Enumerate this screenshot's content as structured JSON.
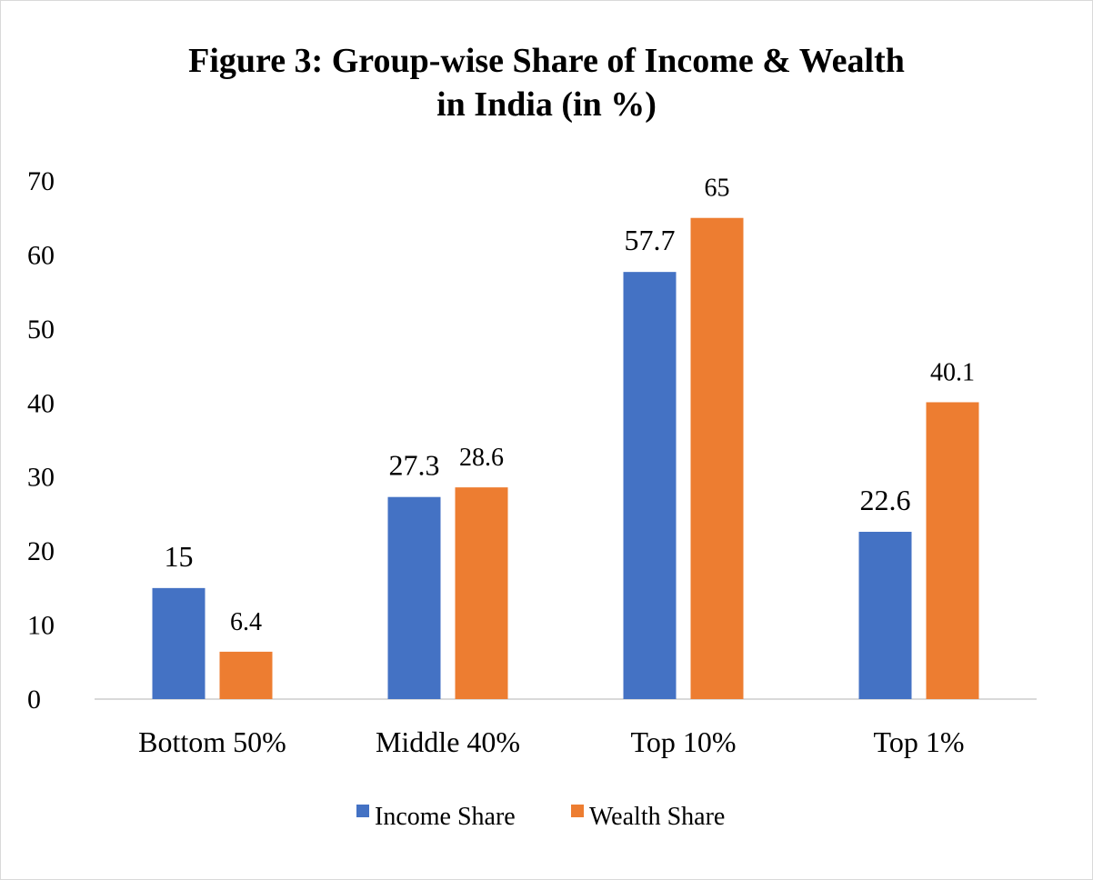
{
  "chart_data": {
    "type": "bar",
    "title": [
      "Figure 3: Group-wise Share of Income & Wealth",
      "in India (in %)"
    ],
    "categories": [
      "Bottom 50%",
      "Middle 40%",
      "Top 10%",
      "Top 1%"
    ],
    "series": [
      {
        "name": "Income Share",
        "values": [
          15,
          27.3,
          57.7,
          22.6
        ],
        "color": "#4472C4"
      },
      {
        "name": "Wealth Share",
        "values": [
          6.4,
          28.6,
          65,
          40.1
        ],
        "color": "#ED7D31"
      }
    ],
    "ylim": [
      0,
      70
    ],
    "yticks": [
      0,
      10,
      20,
      30,
      40,
      50,
      60,
      70
    ],
    "grid": false,
    "legend": "bottom",
    "data_labels": true
  }
}
